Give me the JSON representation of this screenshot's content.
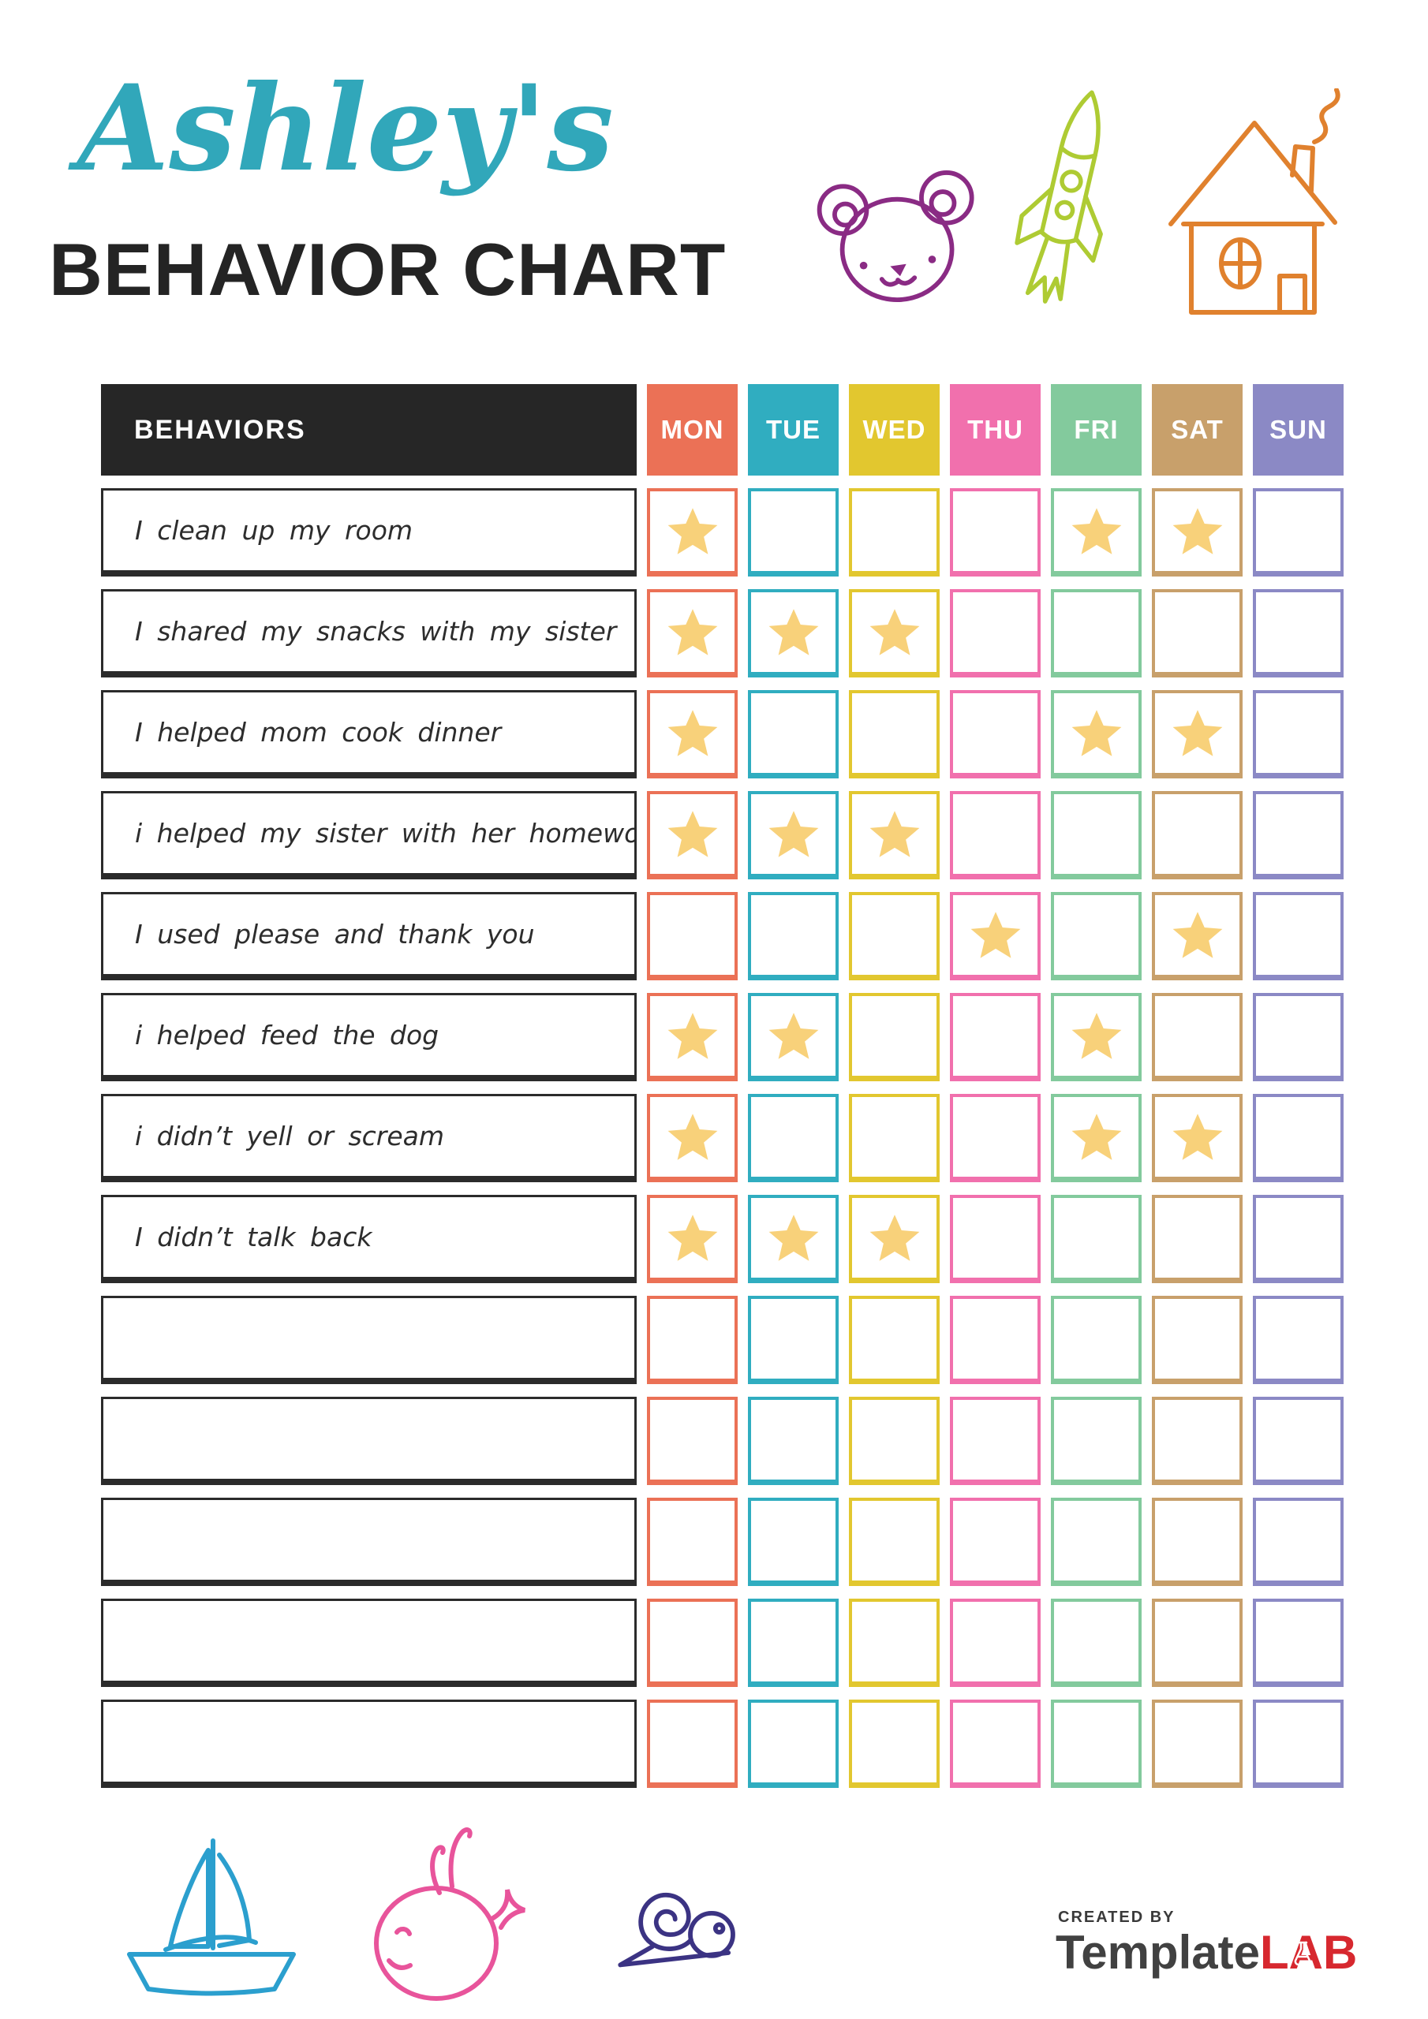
{
  "page": {
    "background": "#ffffff"
  },
  "header": {
    "name_script": "Ashley's",
    "name_color": "#31A7BA",
    "title": "BEHAVIOR CHART",
    "title_color": "#242424",
    "doodles": [
      {
        "icon": "teddy-bear-icon",
        "color": "#8A2B84"
      },
      {
        "icon": "rocket-icon",
        "color": "#AECB33"
      },
      {
        "icon": "house-icon",
        "color": "#E0812E"
      }
    ]
  },
  "table": {
    "behaviors_label": "BEHAVIORS",
    "header_bg": "#262626",
    "star_color": "#F8D17A",
    "days": [
      {
        "label": "MON",
        "color": "#EB7156"
      },
      {
        "label": "TUE",
        "color": "#30ADC0"
      },
      {
        "label": "WED",
        "color": "#E2C72F"
      },
      {
        "label": "THU",
        "color": "#F170AD"
      },
      {
        "label": "FRI",
        "color": "#83CA9D"
      },
      {
        "label": "SAT",
        "color": "#C8A06B"
      },
      {
        "label": "SUN",
        "color": "#8B89C5"
      }
    ],
    "rows": [
      {
        "label": "I clean up my room",
        "stars": [
          "MON",
          "FRI",
          "SAT"
        ]
      },
      {
        "label": "I shared my snacks with my sister",
        "stars": [
          "MON",
          "TUE",
          "WED"
        ]
      },
      {
        "label": "I helped mom cook dinner",
        "stars": [
          "MON",
          "FRI",
          "SAT"
        ]
      },
      {
        "label": "i helped my sister with her homework",
        "stars": [
          "MON",
          "TUE",
          "WED"
        ]
      },
      {
        "label": "I used please and thank you",
        "stars": [
          "THU",
          "SAT"
        ]
      },
      {
        "label": "i helped feed the dog",
        "stars": [
          "MON",
          "TUE",
          "FRI"
        ]
      },
      {
        "label": "i didn’t yell or scream",
        "stars": [
          "MON",
          "FRI",
          "SAT"
        ]
      },
      {
        "label": "I didn’t talk back",
        "stars": [
          "MON",
          "TUE",
          "WED"
        ]
      },
      {
        "label": "",
        "stars": []
      },
      {
        "label": "",
        "stars": []
      },
      {
        "label": "",
        "stars": []
      },
      {
        "label": "",
        "stars": []
      },
      {
        "label": "",
        "stars": []
      }
    ]
  },
  "footer": {
    "doodles": [
      {
        "icon": "sailboat-icon",
        "color": "#2B9FCE"
      },
      {
        "icon": "whale-icon",
        "color": "#E8549B"
      },
      {
        "icon": "snail-icon",
        "color": "#3B3383"
      }
    ],
    "created_by": "CREATED BY",
    "brand_name": "Template",
    "brand_suffix": "LAB",
    "brand_name_color": "#414141",
    "brand_suffix_color": "#D7282F"
  }
}
